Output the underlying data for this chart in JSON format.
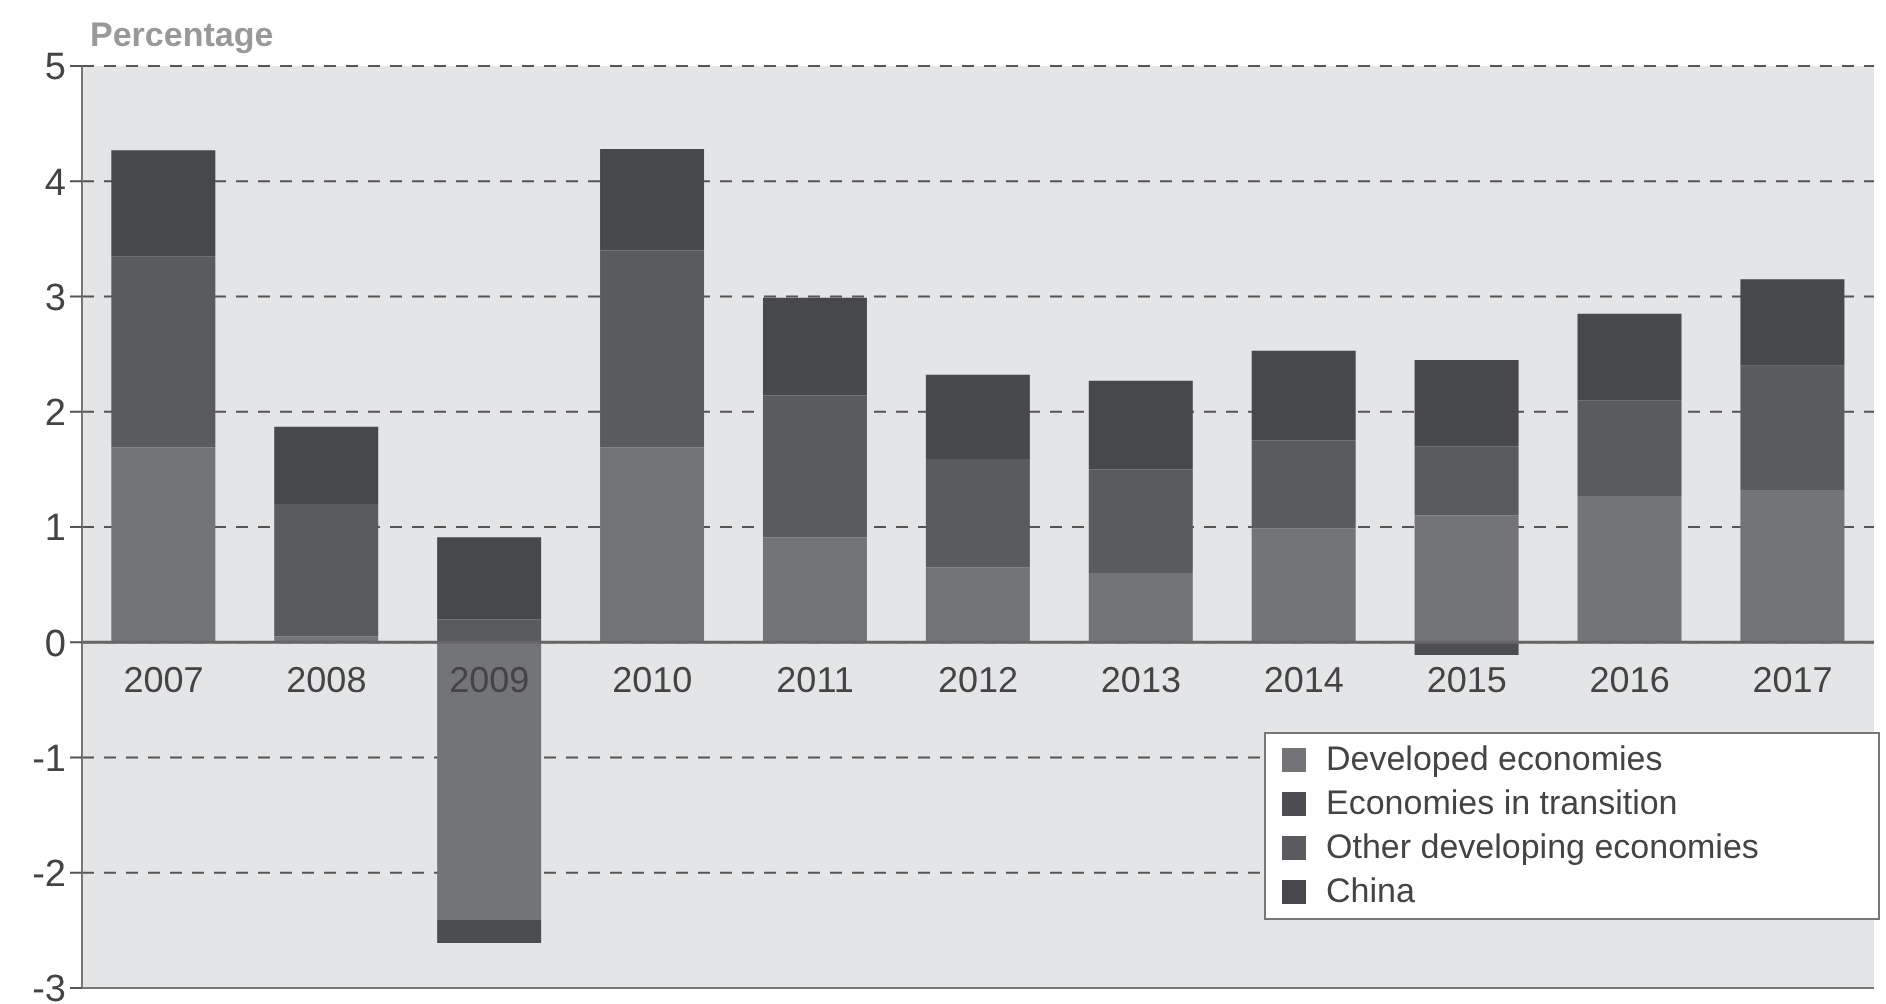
{
  "chart_data": {
    "type": "bar",
    "ylabel": "Percentage",
    "stacked": true,
    "categories": [
      "2007",
      "2008",
      "2009",
      "2010",
      "2011",
      "2012",
      "2013",
      "2014",
      "2015",
      "2016",
      "2017"
    ],
    "series": [
      {
        "name": "Developed economies",
        "color": "#737478",
        "values": [
          1.69,
          0.05,
          -2.41,
          1.69,
          0.91,
          0.65,
          0.6,
          0.99,
          1.1,
          1.27,
          1.32
        ]
      },
      {
        "name": "Economies in transition",
        "color": "#4c4d50",
        "values": [
          0,
          0,
          -0.2,
          0,
          0,
          0,
          0,
          0,
          -0.11,
          0,
          0
        ]
      },
      {
        "name": "Other developing economies",
        "color": "#5a5b5e",
        "values": [
          1.66,
          1.15,
          0.2,
          1.71,
          1.23,
          0.94,
          0.9,
          0.76,
          0.6,
          0.83,
          1.08
        ]
      },
      {
        "name": "China",
        "color": "#47484b",
        "values": [
          0.92,
          0.67,
          0.71,
          0.88,
          0.85,
          0.73,
          0.77,
          0.78,
          0.75,
          0.75,
          0.75
        ]
      }
    ],
    "ylim": [
      -3,
      5
    ],
    "yticks": [
      -3,
      -2,
      -1,
      0,
      1,
      2,
      3,
      4,
      5
    ],
    "grid": "y",
    "legend": "bottom right"
  }
}
